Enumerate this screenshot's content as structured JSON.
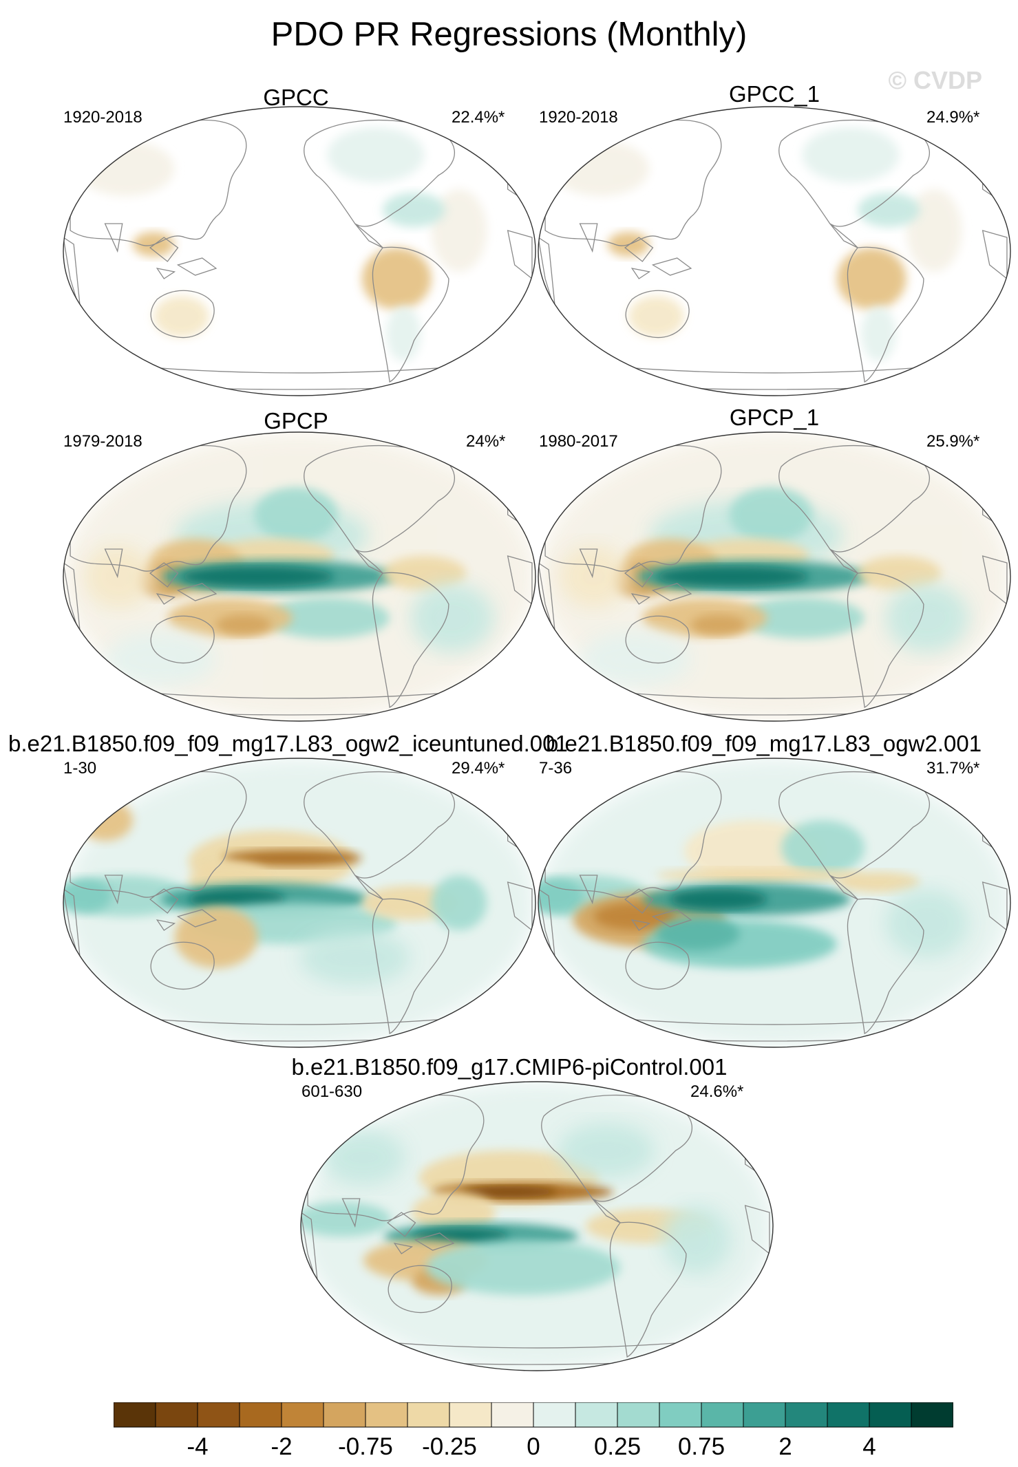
{
  "title": "PDO PR Regressions (Monthly)",
  "watermark": "© CVDP",
  "panels": [
    {
      "title": "GPCC",
      "period": "1920-2018",
      "variance": "22.4%*",
      "field": "obs_land"
    },
    {
      "title": "GPCC_1",
      "period": "1920-2018",
      "variance": "24.9%*",
      "field": "obs_land"
    },
    {
      "title": "GPCP",
      "period": "1979-2018",
      "variance": "24%*",
      "field": "obs_full"
    },
    {
      "title": "GPCP_1",
      "period": "1980-2017",
      "variance": "25.9%*",
      "field": "obs_full"
    },
    {
      "title": "b.e21.B1850.f09_f09_mg17.L83_ogw2_iceuntuned.001",
      "period": "1-30",
      "variance": "29.4%*",
      "field": "model_a"
    },
    {
      "title": "b.e21.B1850.f09_f09_mg17.L83_ogw2.001",
      "period": "7-36",
      "variance": "31.7%*",
      "field": "model_b"
    },
    {
      "title": "b.e21.B1850.f09_g17.CMIP6-piControl.001",
      "period": "601-630",
      "variance": "24.6%*",
      "field": "model_c"
    }
  ],
  "colorbar": {
    "colors": [
      "#5a3408",
      "#7a460f",
      "#8f5416",
      "#a8691f",
      "#c08437",
      "#d4a55f",
      "#e4c183",
      "#eed9a7",
      "#f5e8c8",
      "#f5f1e6",
      "#e4f2ee",
      "#c6e8e1",
      "#a3dbd0",
      "#80cdc1",
      "#5ab6a8",
      "#3c9f93",
      "#23877c",
      "#107368",
      "#055e52",
      "#003c30"
    ],
    "labels": [
      "-4",
      "-2",
      "-0.75",
      "-0.25",
      "0",
      "0.25",
      "0.75",
      "2",
      "4"
    ]
  }
}
